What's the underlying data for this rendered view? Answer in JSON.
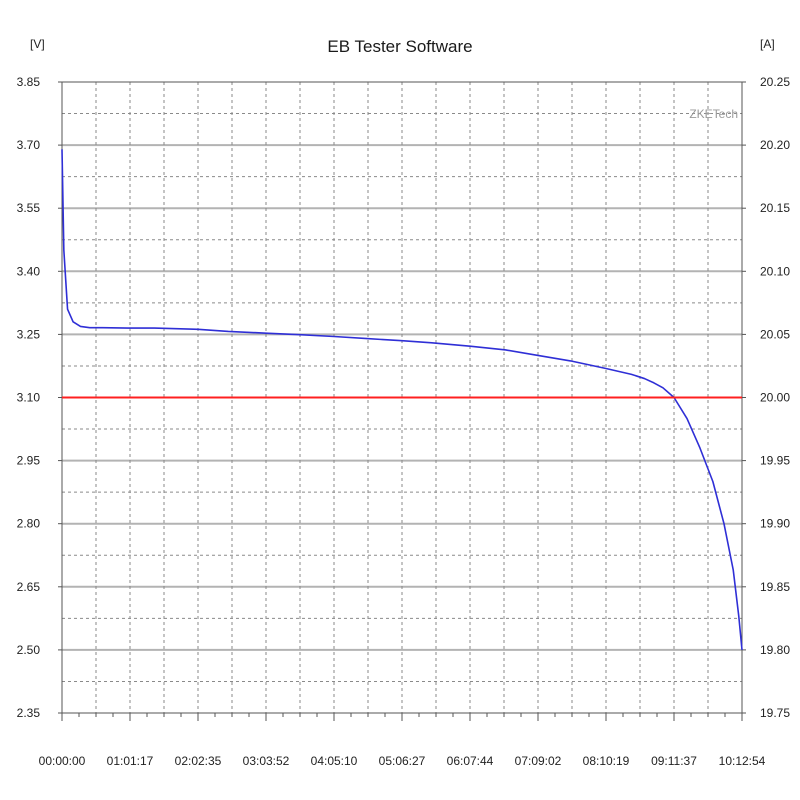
{
  "chart_data": {
    "type": "line",
    "title": "EB Tester Software",
    "watermark": "ZKETech",
    "left_axis": {
      "unit": "[V]",
      "ylim": [
        2.35,
        3.85
      ],
      "ticks": [
        "3.85",
        "3.70",
        "3.55",
        "3.40",
        "3.25",
        "3.10",
        "2.95",
        "2.80",
        "2.65",
        "2.50",
        "2.35"
      ]
    },
    "right_axis": {
      "unit": "[A]",
      "ylim": [
        19.75,
        20.25
      ],
      "ticks": [
        "20.25",
        "20.20",
        "20.15",
        "20.10",
        "20.05",
        "20.00",
        "19.95",
        "19.90",
        "19.85",
        "19.80",
        "19.75"
      ]
    },
    "x_axis": {
      "ticks": [
        "00:00:00",
        "01:01:17",
        "02:02:35",
        "03:03:52",
        "04:05:10",
        "05:06:27",
        "06:07:44",
        "07:09:02",
        "08:10:19",
        "09:11:37",
        "10:12:54"
      ],
      "xlim_seconds": [
        0,
        36774
      ]
    },
    "grid": true,
    "series": [
      {
        "axis": "left",
        "color": "#2f2fd6",
        "x_seconds": [
          0,
          100,
          300,
          600,
          1000,
          1500,
          2200,
          3677,
          5000,
          7355,
          9000,
          11032,
          13000,
          14710,
          16500,
          18387,
          20000,
          22065,
          24000,
          25742,
          27500,
          29419,
          30800,
          31500,
          32000,
          32500,
          33097,
          33800,
          34500,
          35200,
          35800,
          36300,
          36600,
          36774
        ],
        "values": [
          3.69,
          3.45,
          3.31,
          3.28,
          3.269,
          3.266,
          3.266,
          3.265,
          3.265,
          3.262,
          3.257,
          3.253,
          3.249,
          3.245,
          3.24,
          3.235,
          3.23,
          3.222,
          3.213,
          3.2,
          3.187,
          3.169,
          3.155,
          3.145,
          3.135,
          3.123,
          3.1,
          3.05,
          2.98,
          2.9,
          2.8,
          2.69,
          2.58,
          2.5
        ]
      },
      {
        "axis": "right",
        "color": "#ff2020",
        "x_seconds": [
          0,
          36774
        ],
        "values": [
          20.0,
          20.0
        ]
      }
    ]
  }
}
